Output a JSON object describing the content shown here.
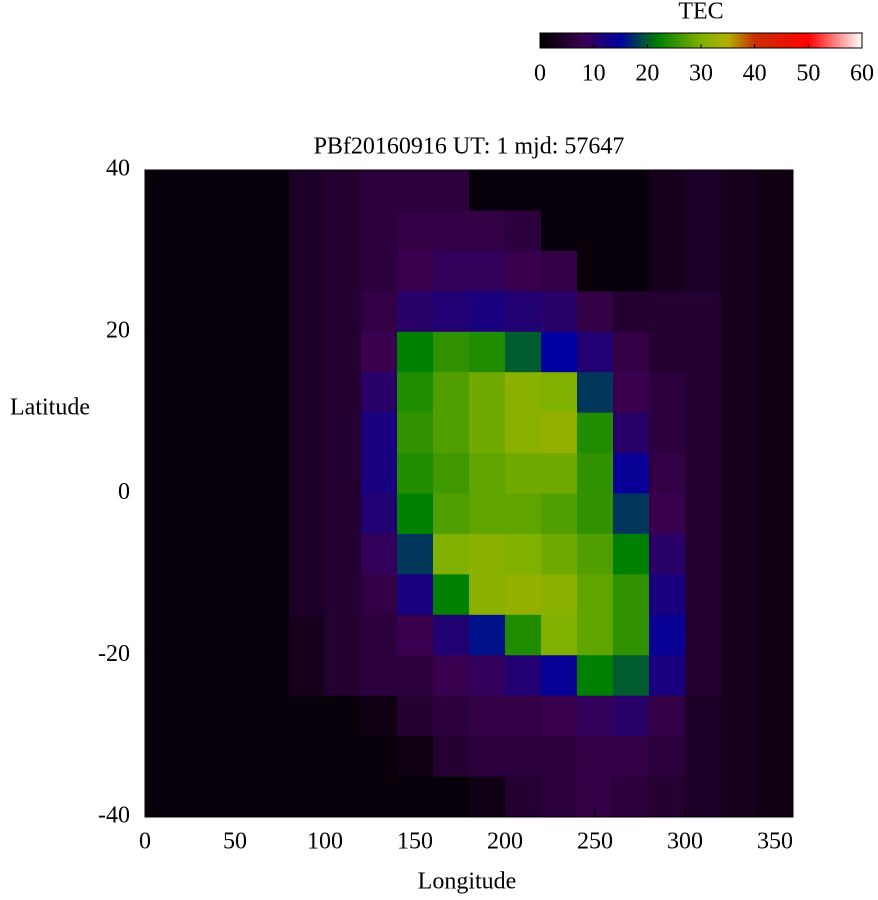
{
  "chart_data": {
    "type": "heatmap",
    "title": "PBf20160916  UT: 1  mjd: 57647",
    "xlabel": "Longitude",
    "ylabel": "Latitude",
    "xlim": [
      0,
      360
    ],
    "ylim": [
      -40,
      40
    ],
    "xticks": [
      0,
      50,
      100,
      150,
      200,
      250,
      300,
      350
    ],
    "yticks": [
      -40,
      -20,
      0,
      20,
      40
    ],
    "x": [
      10,
      30,
      50,
      70,
      90,
      110,
      130,
      150,
      170,
      190,
      210,
      230,
      250,
      270,
      290,
      310,
      330,
      350
    ],
    "y": [
      37.5,
      32.5,
      27.5,
      22.5,
      17.5,
      12.5,
      7.5,
      2.5,
      -2.5,
      -7.5,
      -12.5,
      -17.5,
      -22.5,
      -27.5,
      -32.5,
      -37.5
    ],
    "z": [
      [
        1,
        1,
        1,
        1,
        4,
        5,
        6,
        6,
        6,
        1,
        1,
        1,
        1,
        1,
        3,
        4,
        3,
        2
      ],
      [
        1,
        1,
        1,
        1,
        4,
        5,
        6,
        7,
        7,
        7,
        6,
        1,
        1,
        1,
        3,
        4,
        3,
        2
      ],
      [
        1,
        1,
        1,
        1,
        4,
        5,
        6,
        8,
        9,
        9,
        8,
        7,
        1,
        1,
        3,
        4,
        3,
        2
      ],
      [
        1,
        1,
        1,
        1,
        4,
        5,
        7,
        10,
        11,
        12,
        11,
        10,
        7,
        5,
        5,
        5,
        3,
        2
      ],
      [
        1,
        1,
        1,
        1,
        4,
        5,
        8,
        22,
        25,
        24,
        20,
        15,
        11,
        7,
        5,
        5,
        3,
        2
      ],
      [
        1,
        1,
        1,
        1,
        4,
        5,
        10,
        24,
        27,
        29,
        31,
        30,
        18,
        8,
        6,
        5,
        3,
        2
      ],
      [
        1,
        1,
        1,
        1,
        4,
        5,
        12,
        25,
        27,
        29,
        31,
        32,
        24,
        10,
        6,
        5,
        3,
        2
      ],
      [
        1,
        1,
        1,
        1,
        4,
        5,
        12,
        24,
        26,
        28,
        29,
        29,
        25,
        14,
        7,
        5,
        3,
        2
      ],
      [
        1,
        1,
        1,
        1,
        4,
        5,
        11,
        22,
        27,
        28,
        28,
        27,
        25,
        18,
        8,
        5,
        3,
        2
      ],
      [
        1,
        1,
        1,
        1,
        4,
        5,
        9,
        18,
        30,
        31,
        30,
        29,
        27,
        22,
        10,
        5,
        3,
        2
      ],
      [
        1,
        1,
        1,
        1,
        4,
        5,
        7,
        12,
        22,
        31,
        32,
        31,
        28,
        25,
        12,
        5,
        3,
        2
      ],
      [
        1,
        1,
        1,
        1,
        3,
        5,
        6,
        8,
        11,
        16,
        24,
        30,
        28,
        25,
        14,
        5,
        3,
        2
      ],
      [
        1,
        1,
        1,
        1,
        3,
        5,
        6,
        6,
        8,
        9,
        11,
        14,
        22,
        20,
        12,
        5,
        3,
        2
      ],
      [
        1,
        1,
        1,
        1,
        1,
        1,
        2,
        5,
        6,
        7,
        7,
        8,
        9,
        10,
        7,
        4,
        3,
        2
      ],
      [
        1,
        1,
        1,
        1,
        1,
        1,
        1,
        2,
        5,
        6,
        6,
        6,
        7,
        7,
        6,
        4,
        3,
        2
      ],
      [
        1,
        1,
        1,
        1,
        1,
        1,
        1,
        1,
        1,
        2,
        5,
        6,
        7,
        6,
        5,
        4,
        3,
        2
      ]
    ],
    "colorbar": {
      "title": "TEC",
      "lim": [
        0,
        60
      ],
      "ticks": [
        0,
        10,
        20,
        30,
        40,
        50,
        60
      ]
    },
    "colormap": [
      [
        0,
        "#000000"
      ],
      [
        8,
        "#3a0050"
      ],
      [
        15,
        "#0000a0"
      ],
      [
        22,
        "#008000"
      ],
      [
        30,
        "#80b000"
      ],
      [
        35,
        "#b0b000"
      ],
      [
        40,
        "#c83000"
      ],
      [
        50,
        "#ff0000"
      ],
      [
        60,
        "#ffffff"
      ]
    ]
  }
}
